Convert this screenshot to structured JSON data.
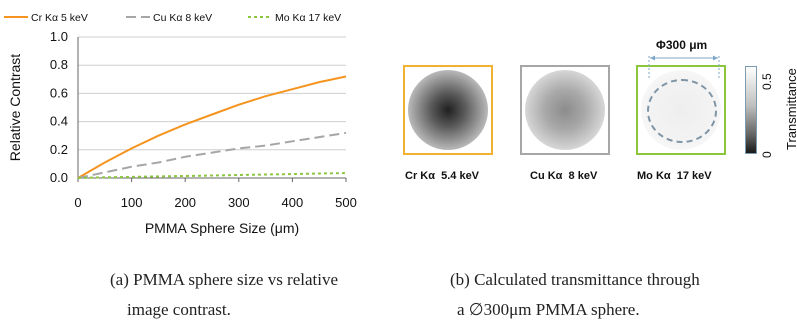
{
  "chart_data": {
    "type": "line",
    "title": "",
    "xlabel": "PMMA Sphere Size (μm)",
    "ylabel": "Relative Contrast",
    "xlim": [
      0,
      500
    ],
    "ylim": [
      0,
      1.0
    ],
    "xticks": [
      "0",
      "100",
      "200",
      "300",
      "400",
      "500"
    ],
    "yticks": [
      "0.0",
      "0.2",
      "0.4",
      "0.6",
      "0.8",
      "1.0"
    ],
    "grid": "horizontal",
    "legend_position": "top",
    "series": [
      {
        "name": "Cr Kα  5 keV",
        "color": "#f5941f",
        "style": "solid",
        "x": [
          0,
          50,
          100,
          150,
          200,
          250,
          300,
          350,
          400,
          450,
          500
        ],
        "y": [
          0.0,
          0.11,
          0.21,
          0.3,
          0.38,
          0.45,
          0.52,
          0.58,
          0.63,
          0.68,
          0.72
        ]
      },
      {
        "name": "Cu Kα  8 keV",
        "color": "#a6a6a6",
        "style": "dashed",
        "x": [
          0,
          50,
          100,
          150,
          200,
          250,
          300,
          350,
          400,
          450,
          500
        ],
        "y": [
          0.0,
          0.04,
          0.08,
          0.11,
          0.15,
          0.18,
          0.21,
          0.23,
          0.26,
          0.29,
          0.32
        ]
      },
      {
        "name": "Mo Kα  17 keV",
        "color": "#8cc63f",
        "style": "dotted",
        "x": [
          0,
          50,
          100,
          150,
          200,
          250,
          300,
          350,
          400,
          450,
          500
        ],
        "y": [
          0.0,
          0.005,
          0.008,
          0.011,
          0.014,
          0.018,
          0.021,
          0.025,
          0.028,
          0.032,
          0.035
        ]
      }
    ]
  },
  "panel_b": {
    "diameter_label": "Φ300 μm",
    "squares": [
      {
        "label": "Cr Kα  5.4 keV"
      },
      {
        "label": "Cu Kα  8 keV"
      },
      {
        "label": "Mo Kα  17 keV"
      }
    ],
    "colorbar": {
      "title": "Transmittance",
      "max": "0.5",
      "min": "0"
    }
  },
  "captions": {
    "a_line1": "(a) PMMA sphere size vs relative",
    "a_line2": "image contrast.",
    "b_line1": "(b) Calculated transmittance through",
    "b_line2": "a ∅300μm PMMA sphere."
  }
}
